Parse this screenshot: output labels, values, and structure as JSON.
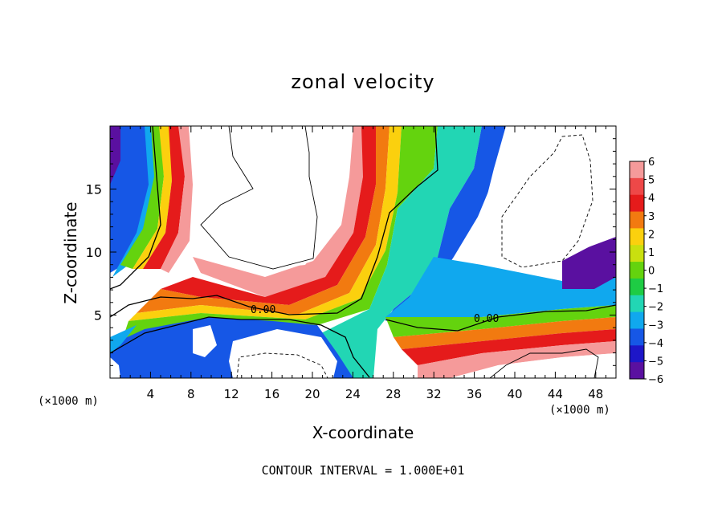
{
  "chart_data": {
    "type": "heatmap",
    "title": "zonal velocity",
    "xlabel": "X-coordinate",
    "ylabel": "Z-coordinate",
    "x_unit_label_left": "(×1000 m)",
    "x_unit_label_right": "(×1000 m)",
    "footer": "CONTOUR INTERVAL = 1.000E+01",
    "xlim": [
      0,
      50
    ],
    "ylim": [
      0,
      20
    ],
    "x_ticks": [
      4,
      8,
      12,
      16,
      20,
      24,
      28,
      32,
      36,
      40,
      44,
      48
    ],
    "y_ticks": [
      5,
      10,
      15
    ],
    "colorbar": {
      "levels": [
        6,
        5,
        4,
        3,
        2,
        1,
        0,
        -1,
        -2,
        -3,
        -4,
        -5,
        -6
      ],
      "labels": [
        "6",
        "5",
        "4",
        "3",
        "2",
        "1",
        "0",
        "−1",
        "−2",
        "−3",
        "−4",
        "−5",
        "−6"
      ],
      "colors": [
        "#f59a9a",
        "#ee4848",
        "#e51b1b",
        "#f27a10",
        "#fbd00e",
        "#c9e00f",
        "#64d30e",
        "#1ecc44",
        "#22d6b4",
        "#10a8ee",
        "#1657e6",
        "#1d16c8",
        "#5a10a0"
      ]
    },
    "contour_labels": [
      "0.00",
      "0.00"
    ]
  }
}
